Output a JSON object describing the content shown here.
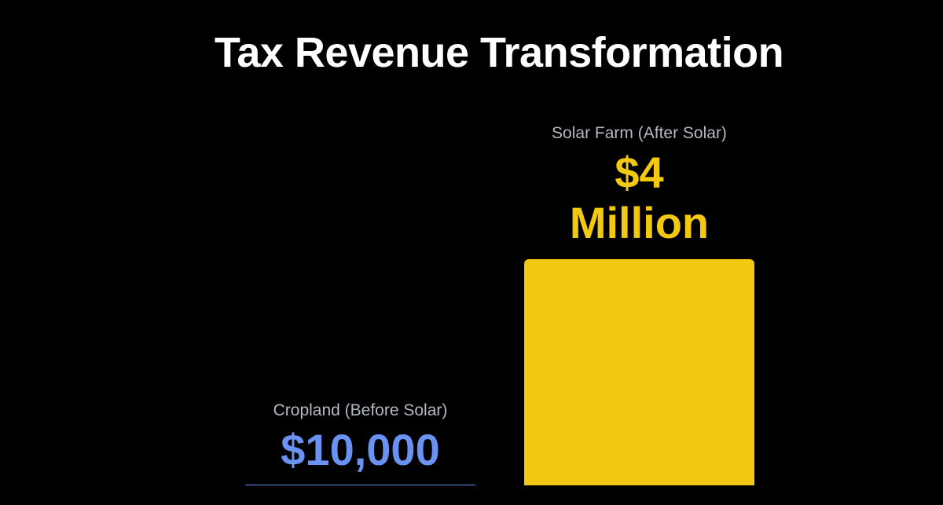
{
  "chart_data": {
    "type": "bar",
    "title": "Tax Revenue Transformation",
    "categories": [
      "Cropland (Before Solar)",
      "Solar Farm (After Solar)"
    ],
    "values": [
      10000,
      4000000
    ],
    "value_labels": [
      "$10,000",
      "$4 Million"
    ],
    "colors": [
      "#6a92f2",
      "#f2c811"
    ],
    "ylim": [
      0,
      4000000
    ]
  }
}
